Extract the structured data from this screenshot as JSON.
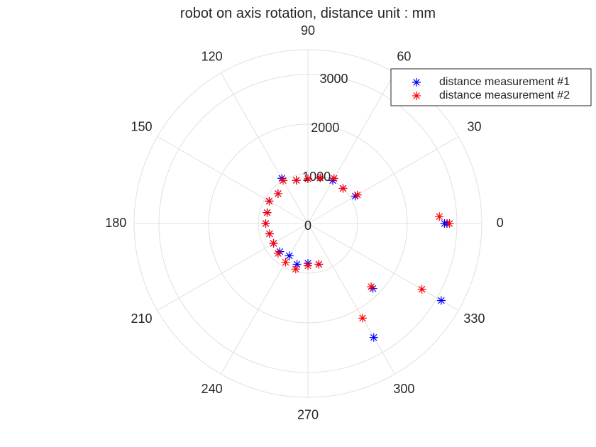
{
  "chart_data": {
    "type": "scatter",
    "coordinate_system": "polar",
    "title": "robot on axis rotation, distance unit : mm",
    "theta_unit": "degrees",
    "theta_ticks": [
      0,
      30,
      60,
      90,
      120,
      150,
      180,
      210,
      240,
      270,
      300,
      330
    ],
    "r_ticks": [
      0,
      1000,
      2000,
      3000
    ],
    "rlim": [
      0,
      3500
    ],
    "tick_labels": {
      "theta": [
        "0",
        "30",
        "60",
        "90",
        "120",
        "150",
        "180",
        "210",
        "240",
        "270",
        "300",
        "330"
      ],
      "r": [
        "0",
        "1000",
        "2000",
        "3000"
      ]
    },
    "grid": true,
    "legend_position": "top-right",
    "marker": "asterisk",
    "series": [
      {
        "name": "distance measurement #1",
        "color": "#0000ff",
        "points": [
          {
            "theta": 0,
            "r": 2800
          },
          {
            "theta": 0,
            "r": 2750
          },
          {
            "theta": 30,
            "r": 1100
          },
          {
            "theta": 45,
            "r": 1000
          },
          {
            "theta": 60,
            "r": 1000
          },
          {
            "theta": 75,
            "r": 950
          },
          {
            "theta": 90,
            "r": 900
          },
          {
            "theta": 105,
            "r": 900
          },
          {
            "theta": 120,
            "r": 1050
          },
          {
            "theta": 135,
            "r": 850
          },
          {
            "theta": 150,
            "r": 900
          },
          {
            "theta": 165,
            "r": 850
          },
          {
            "theta": 180,
            "r": 850
          },
          {
            "theta": 195,
            "r": 800
          },
          {
            "theta": 210,
            "r": 800
          },
          {
            "theta": 225,
            "r": 800
          },
          {
            "theta": 240,
            "r": 750
          },
          {
            "theta": 255,
            "r": 850
          },
          {
            "theta": 270,
            "r": 800
          },
          {
            "theta": 285,
            "r": 850
          },
          {
            "theta": 300,
            "r": 2650
          },
          {
            "theta": 315,
            "r": 1850
          },
          {
            "theta": 330,
            "r": 3100
          }
        ]
      },
      {
        "name": "distance measurement #2",
        "color": "#ff0000",
        "points": [
          {
            "theta": 0,
            "r": 2850
          },
          {
            "theta": 3,
            "r": 2650
          },
          {
            "theta": 30,
            "r": 1150
          },
          {
            "theta": 45,
            "r": 1000
          },
          {
            "theta": 60,
            "r": 1050
          },
          {
            "theta": 75,
            "r": 950
          },
          {
            "theta": 90,
            "r": 900
          },
          {
            "theta": 105,
            "r": 900
          },
          {
            "theta": 120,
            "r": 1000
          },
          {
            "theta": 135,
            "r": 850
          },
          {
            "theta": 150,
            "r": 900
          },
          {
            "theta": 165,
            "r": 850
          },
          {
            "theta": 180,
            "r": 850
          },
          {
            "theta": 195,
            "r": 800
          },
          {
            "theta": 210,
            "r": 800
          },
          {
            "theta": 225,
            "r": 850
          },
          {
            "theta": 240,
            "r": 900
          },
          {
            "theta": 255,
            "r": 950
          },
          {
            "theta": 270,
            "r": 850
          },
          {
            "theta": 285,
            "r": 850
          },
          {
            "theta": 300,
            "r": 2200
          },
          {
            "theta": 315,
            "r": 1800
          },
          {
            "theta": 330,
            "r": 2650
          }
        ]
      }
    ]
  }
}
